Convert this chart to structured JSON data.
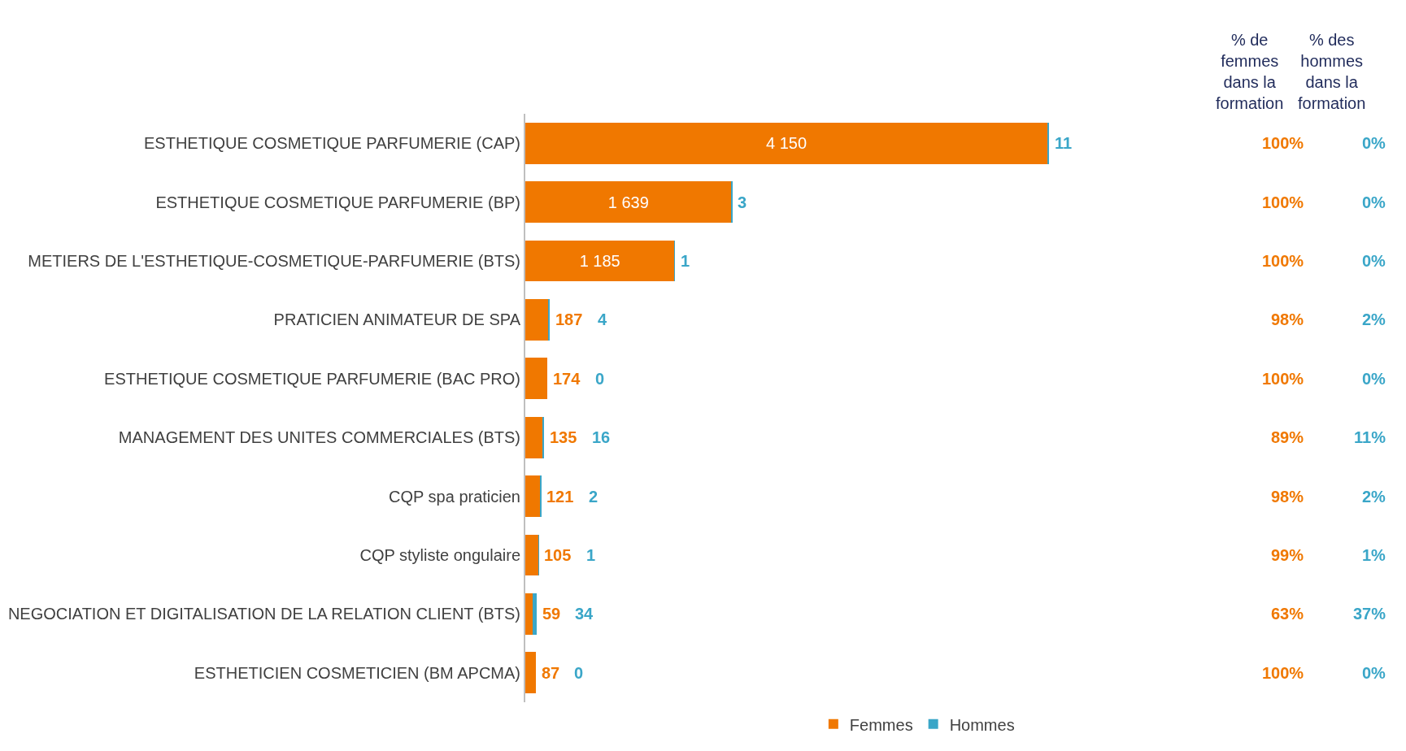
{
  "chart_data": {
    "type": "bar",
    "orientation": "horizontal",
    "stacked": true,
    "legend": "bottom",
    "categories": [
      "ESTHETIQUE COSMETIQUE PARFUMERIE (CAP)",
      "ESTHETIQUE COSMETIQUE PARFUMERIE (BP)",
      "METIERS DE L'ESTHETIQUE-COSMETIQUE-PARFUMERIE (BTS)",
      "PRATICIEN ANIMATEUR DE SPA",
      "ESTHETIQUE COSMETIQUE PARFUMERIE (BAC PRO)",
      "MANAGEMENT DES UNITES COMMERCIALES (BTS)",
      "CQP spa praticien",
      "CQP styliste ongulaire",
      "NEGOCIATION ET DIGITALISATION DE LA RELATION CLIENT (BTS)",
      "ESTHETICIEN COSMETICIEN (BM APCMA)"
    ],
    "series": [
      {
        "name": "Femmes",
        "color": "#f07800",
        "values": [
          4150,
          1639,
          1185,
          187,
          174,
          135,
          121,
          105,
          59,
          87
        ],
        "value_labels": [
          "4 150",
          "1 639",
          "1 185",
          "187",
          "174",
          "135",
          "121",
          "105",
          "59",
          "87"
        ]
      },
      {
        "name": "Hommes",
        "color": "#3aa6c8",
        "values": [
          11,
          3,
          1,
          4,
          0,
          16,
          2,
          1,
          34,
          0
        ],
        "value_labels": [
          "11",
          "3",
          "1",
          "4",
          "0",
          "16",
          "2",
          "1",
          "34",
          "0"
        ]
      }
    ],
    "annotations": [
      "% de femmes dans la formation",
      "% des hommes dans la formation",
      "100%",
      "0%",
      "100%",
      "0%",
      "100%",
      "0%",
      "98%",
      "2%",
      "100%",
      "0%",
      "89%",
      "11%",
      "98%",
      "2%",
      "99%",
      "1%",
      "63%",
      "37%",
      "100%",
      "0%"
    ]
  }
}
